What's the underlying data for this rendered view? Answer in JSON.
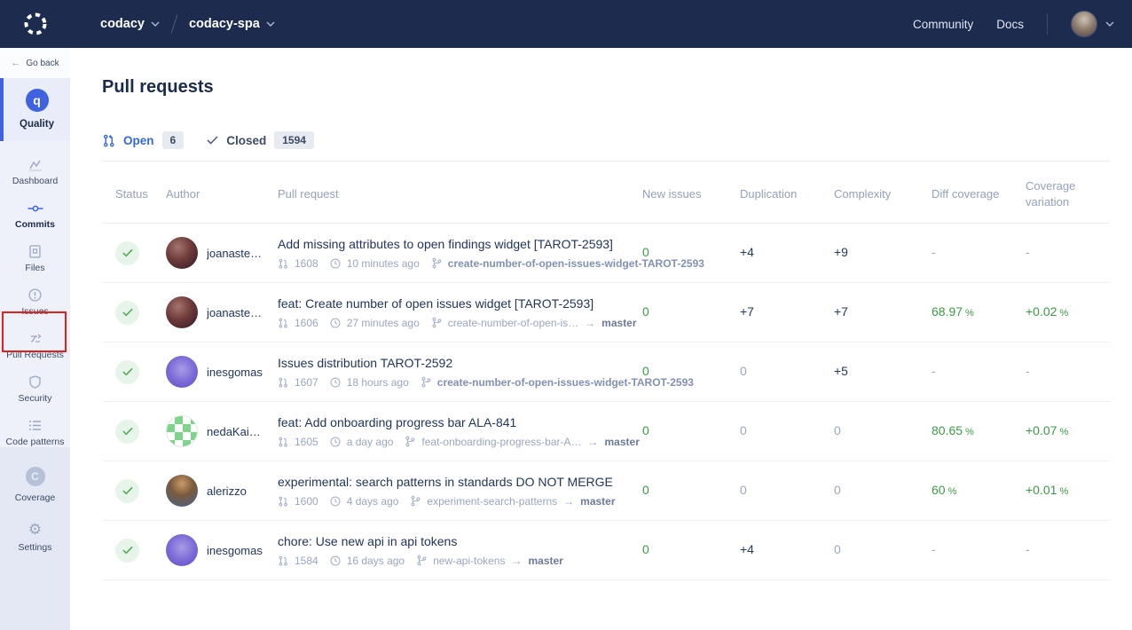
{
  "colors": {
    "navbar_bg": "#1c2b4e",
    "accent_blue": "#3e62e0",
    "link_blue": "#3569d6",
    "green": "#3c9a47",
    "navy_text": "#24395e",
    "muted": "#9aa6c0",
    "annotation_red": "#e01f1f"
  },
  "navbar": {
    "org": "codacy",
    "repo": "codacy-spa",
    "community": "Community",
    "docs": "Docs"
  },
  "sidebar": {
    "go_back": "Go back",
    "quality": "Quality",
    "items": [
      {
        "label": "Dashboard",
        "icon": "dashboard-icon",
        "active": false
      },
      {
        "label": "Commits",
        "icon": "commits-icon",
        "active": true
      },
      {
        "label": "Files",
        "icon": "files-icon",
        "active": false
      },
      {
        "label": "Issues",
        "icon": "issues-icon",
        "active": false
      },
      {
        "label": "Pull Requests",
        "icon": "pull-requests-icon",
        "active": false,
        "annotated": true
      },
      {
        "label": "Security",
        "icon": "security-icon",
        "active": false
      },
      {
        "label": "Code patterns",
        "icon": "code-patterns-icon",
        "active": false
      }
    ],
    "bottom_items": [
      {
        "label": "Coverage",
        "icon": "coverage-icon"
      },
      {
        "label": "Settings",
        "icon": "settings-gear-icon"
      }
    ]
  },
  "main": {
    "title": "Pull requests",
    "tabs": [
      {
        "label": "Open",
        "count": "6",
        "active": true
      },
      {
        "label": "Closed",
        "count": "1594",
        "active": false
      }
    ],
    "table": {
      "columns": [
        "Status",
        "Author",
        "Pull request",
        "New issues",
        "Duplication",
        "Complexity",
        "Diff coverage",
        "Coverage variation"
      ],
      "rows": [
        {
          "status": "passed",
          "author": "joanaste…",
          "avatar": "joanaste",
          "title": "Add missing attributes to open findings widget [TAROT-2593]",
          "number": "1608",
          "time": "10 minutes ago",
          "branch": "create-number-of-open-issues-widget-TAROT-2593",
          "branch_bold": "bold",
          "arrow": "",
          "target": "",
          "new_issues": {
            "text": "0",
            "tone": "green"
          },
          "duplication": {
            "text": "+4",
            "tone": "navy"
          },
          "complexity": {
            "text": "+9",
            "tone": "navy"
          },
          "diff_coverage": {
            "text": "-",
            "unit": "",
            "tone": "muted"
          },
          "coverage_variation": {
            "text": "-",
            "unit": "",
            "tone": "muted"
          }
        },
        {
          "status": "passed",
          "author": "joanaste…",
          "avatar": "joanaste",
          "title": "feat: Create number of open issues widget [TAROT-2593]",
          "number": "1606",
          "time": "27 minutes ago",
          "branch": "create-number-of-open-is…",
          "branch_bold": "normal",
          "arrow": "→",
          "target": "master",
          "new_issues": {
            "text": "0",
            "tone": "green"
          },
          "duplication": {
            "text": "+7",
            "tone": "navy"
          },
          "complexity": {
            "text": "+7",
            "tone": "navy"
          },
          "diff_coverage": {
            "text": "68.97",
            "unit": "%",
            "tone": "green"
          },
          "coverage_variation": {
            "text": "+0.02",
            "unit": "%",
            "tone": "green"
          }
        },
        {
          "status": "passed",
          "author": "inesgomas",
          "avatar": "inesgomas",
          "title": "Issues distribution TAROT-2592",
          "number": "1607",
          "time": "18 hours ago",
          "branch": "create-number-of-open-issues-widget-TAROT-2593",
          "branch_bold": "bold",
          "arrow": "",
          "target": "",
          "new_issues": {
            "text": "0",
            "tone": "green"
          },
          "duplication": {
            "text": "0",
            "tone": "muted"
          },
          "complexity": {
            "text": "+5",
            "tone": "navy"
          },
          "diff_coverage": {
            "text": "-",
            "unit": "",
            "tone": "muted"
          },
          "coverage_variation": {
            "text": "-",
            "unit": "",
            "tone": "muted"
          }
        },
        {
          "status": "passed",
          "author": "nedaKai…",
          "avatar": "nedakai",
          "title": "feat: Add onboarding progress bar ALA-841",
          "number": "1605",
          "time": "a day ago",
          "branch": "feat-onboarding-progress-bar-A…",
          "branch_bold": "normal",
          "arrow": "→",
          "target": "master",
          "new_issues": {
            "text": "0",
            "tone": "green"
          },
          "duplication": {
            "text": "0",
            "tone": "muted"
          },
          "complexity": {
            "text": "0",
            "tone": "muted"
          },
          "diff_coverage": {
            "text": "80.65",
            "unit": "%",
            "tone": "green"
          },
          "coverage_variation": {
            "text": "+0.07",
            "unit": "%",
            "tone": "green"
          }
        },
        {
          "status": "passed",
          "author": "alerizzo",
          "avatar": "alerizzo",
          "title": "experimental: search patterns in standards DO NOT MERGE",
          "number": "1600",
          "time": "4 days ago",
          "branch": "experiment-search-patterns",
          "branch_bold": "normal",
          "arrow": "→",
          "target": "master",
          "new_issues": {
            "text": "0",
            "tone": "green"
          },
          "duplication": {
            "text": "0",
            "tone": "muted"
          },
          "complexity": {
            "text": "0",
            "tone": "muted"
          },
          "diff_coverage": {
            "text": "60",
            "unit": "%",
            "tone": "green"
          },
          "coverage_variation": {
            "text": "+0.01",
            "unit": "%",
            "tone": "green"
          }
        },
        {
          "status": "passed",
          "author": "inesgomas",
          "avatar": "inesgomas",
          "title": "chore: Use new api in api tokens",
          "number": "1584",
          "time": "16 days ago",
          "branch": "new-api-tokens",
          "branch_bold": "normal",
          "arrow": "→",
          "target": "master",
          "new_issues": {
            "text": "0",
            "tone": "green"
          },
          "duplication": {
            "text": "+4",
            "tone": "navy"
          },
          "complexity": {
            "text": "0",
            "tone": "muted"
          },
          "diff_coverage": {
            "text": "-",
            "unit": "",
            "tone": "muted"
          },
          "coverage_variation": {
            "text": "-",
            "unit": "",
            "tone": "muted"
          }
        }
      ]
    }
  }
}
